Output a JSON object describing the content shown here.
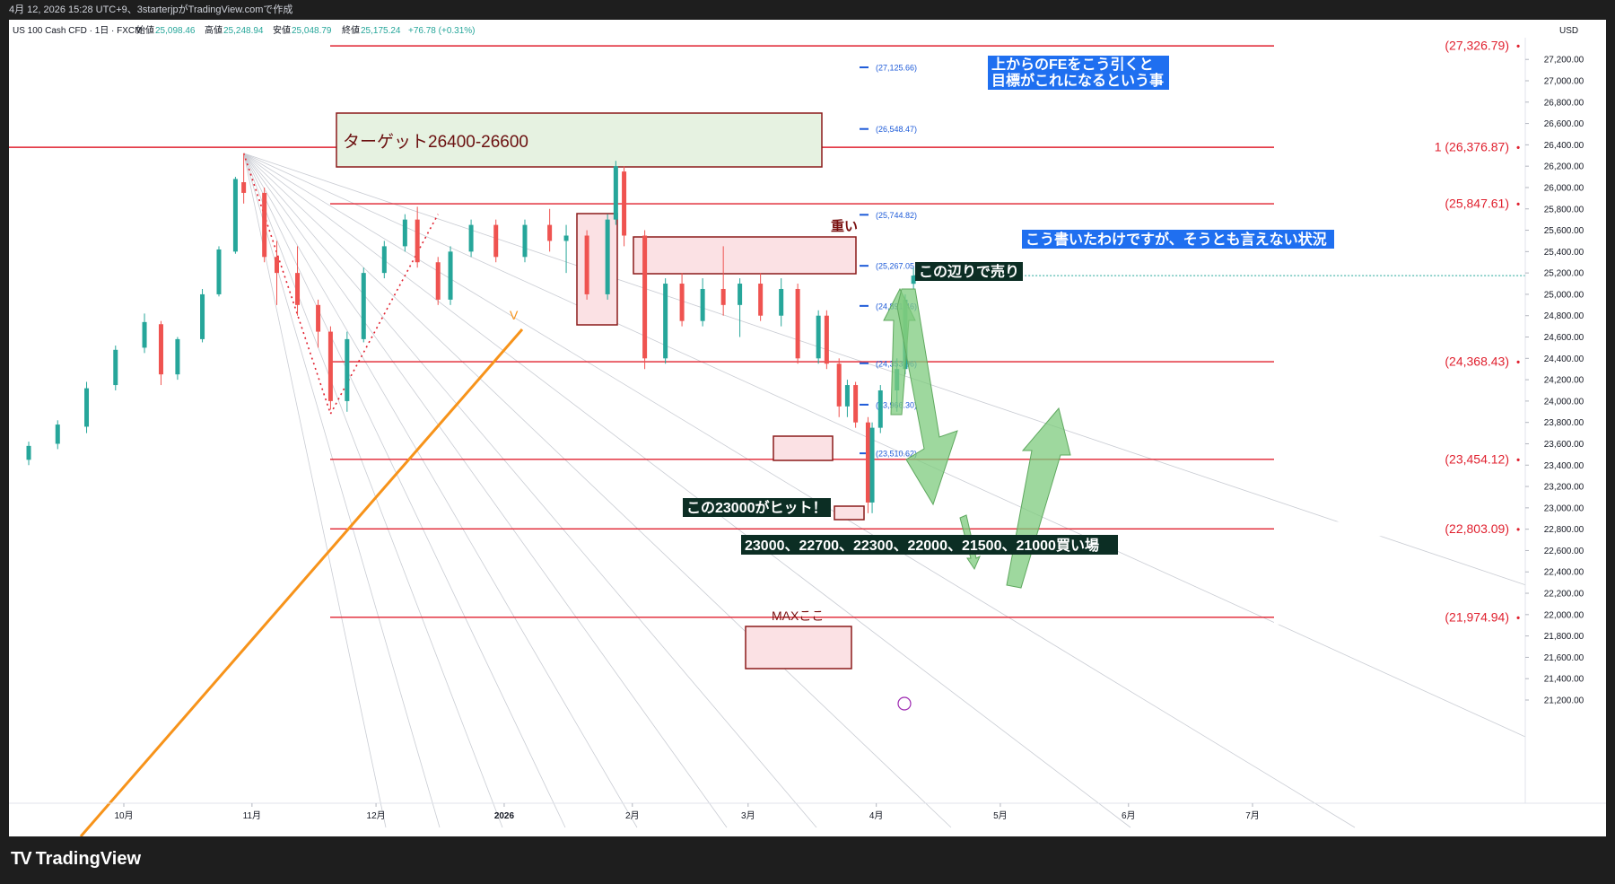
{
  "header": {
    "credit": "4月 12, 2026 15:28 UTC+9、3starterjpがTradingView.comで作成"
  },
  "instrument": {
    "name": "US 100 Cash CFD · 1日 · FXCM",
    "open_label": "始値",
    "open": "25,098.46",
    "high_label": "高値",
    "high": "25,248.94",
    "low_label": "安値",
    "low": "25,048.79",
    "close_label": "終値",
    "close": "25,175.24",
    "change": "+76.78 (+0.31%)"
  },
  "currency": "USD",
  "colors": {
    "up": "#26a69a",
    "down": "#ef5350",
    "level": "#e0212f",
    "fib": "#1e5bd8",
    "orange": "#f7931a",
    "arrow": "#7ecb7e"
  },
  "chart_data": {
    "type": "candlestick",
    "title": "US 100 Cash CFD · 1日 · FXCM",
    "ylim": [
      21000,
      27500
    ],
    "y_ticks": [
      21200,
      21400,
      21600,
      21800,
      22000,
      22200,
      22400,
      22600,
      22800,
      23000,
      23200,
      23400,
      23600,
      23800,
      24000,
      24200,
      24400,
      24600,
      24800,
      25000,
      25200,
      25400,
      25600,
      25800,
      26000,
      26200,
      26400,
      26600,
      26800,
      27000,
      27200
    ],
    "x_ticks": [
      {
        "label": "10月",
        "date": "2025-10-01"
      },
      {
        "label": "11月",
        "date": "2025-11-01"
      },
      {
        "label": "12月",
        "date": "2025-12-01"
      },
      {
        "label": "2026",
        "date": "2026-01-01"
      },
      {
        "label": "2月",
        "date": "2026-02-01"
      },
      {
        "label": "3月",
        "date": "2026-03-01"
      },
      {
        "label": "4月",
        "date": "2026-04-01"
      },
      {
        "label": "5月",
        "date": "2026-05-01"
      },
      {
        "label": "6月",
        "date": "2026-06-01"
      },
      {
        "label": "7月",
        "date": "2026-07-01"
      }
    ],
    "last_price": 25175.24,
    "levels": [
      {
        "value": 27326.79,
        "label": "(27,326.79)"
      },
      {
        "value": 26376.87,
        "label": "1 (26,376.87)"
      },
      {
        "value": 25847.61,
        "label": "(25,847.61)"
      },
      {
        "value": 24368.43,
        "label": "(24,368.43)"
      },
      {
        "value": 23454.12,
        "label": "(23,454.12)"
      },
      {
        "value": 22803.09,
        "label": "(22,803.09)"
      },
      {
        "value": 21974.94,
        "label": "(21,974.94)"
      }
    ],
    "fib_levels": [
      {
        "value": 27125.66,
        "label": "(27,125.66)"
      },
      {
        "value": 26548.47,
        "label": "(26,548.47)"
      },
      {
        "value": 25744.82,
        "label": "(25,744.82)"
      },
      {
        "value": 25267.05,
        "label": "(25,267.05"
      },
      {
        "value": 24891.46,
        "label": "(24,891.46)"
      },
      {
        "value": 24353.96,
        "label": "(24,353.96)"
      },
      {
        "value": 23966.3,
        "label": "(23,966.30)"
      },
      {
        "value": 23510.62,
        "label": "(23,510.62)"
      }
    ],
    "candles": [
      {
        "d": "2025-09-02",
        "o": 23380,
        "h": 23470,
        "l": 23300,
        "c": 23440
      },
      {
        "d": "2025-09-08",
        "o": 23450,
        "h": 23620,
        "l": 23400,
        "c": 23580
      },
      {
        "d": "2025-09-15",
        "o": 23600,
        "h": 23820,
        "l": 23550,
        "c": 23780
      },
      {
        "d": "2025-09-22",
        "o": 23760,
        "h": 24180,
        "l": 23700,
        "c": 24120
      },
      {
        "d": "2025-09-29",
        "o": 24150,
        "h": 24520,
        "l": 24100,
        "c": 24480
      },
      {
        "d": "2025-10-06",
        "o": 24500,
        "h": 24820,
        "l": 24450,
        "c": 24740
      },
      {
        "d": "2025-10-10",
        "o": 24720,
        "h": 24750,
        "l": 24150,
        "c": 24250
      },
      {
        "d": "2025-10-14",
        "o": 24250,
        "h": 24600,
        "l": 24200,
        "c": 24580
      },
      {
        "d": "2025-10-20",
        "o": 24580,
        "h": 25050,
        "l": 24550,
        "c": 25000
      },
      {
        "d": "2025-10-24",
        "o": 25000,
        "h": 25450,
        "l": 24980,
        "c": 25420
      },
      {
        "d": "2025-10-28",
        "o": 25400,
        "h": 26100,
        "l": 25380,
        "c": 26080
      },
      {
        "d": "2025-10-30",
        "o": 26050,
        "h": 26320,
        "l": 25850,
        "c": 25950
      },
      {
        "d": "2025-11-04",
        "o": 25950,
        "h": 26000,
        "l": 25300,
        "c": 25350
      },
      {
        "d": "2025-11-07",
        "o": 25350,
        "h": 25500,
        "l": 24900,
        "c": 25200
      },
      {
        "d": "2025-11-12",
        "o": 25200,
        "h": 25450,
        "l": 24800,
        "c": 24900
      },
      {
        "d": "2025-11-17",
        "o": 24900,
        "h": 24950,
        "l": 24500,
        "c": 24650
      },
      {
        "d": "2025-11-20",
        "o": 24650,
        "h": 24700,
        "l": 23920,
        "c": 24000
      },
      {
        "d": "2025-11-24",
        "o": 24000,
        "h": 24650,
        "l": 23900,
        "c": 24580
      },
      {
        "d": "2025-11-28",
        "o": 24580,
        "h": 25250,
        "l": 24550,
        "c": 25200
      },
      {
        "d": "2025-12-03",
        "o": 25200,
        "h": 25500,
        "l": 25150,
        "c": 25450
      },
      {
        "d": "2025-12-08",
        "o": 25450,
        "h": 25750,
        "l": 25400,
        "c": 25700
      },
      {
        "d": "2025-12-11",
        "o": 25700,
        "h": 25820,
        "l": 25250,
        "c": 25300
      },
      {
        "d": "2025-12-16",
        "o": 25300,
        "h": 25350,
        "l": 24900,
        "c": 24950
      },
      {
        "d": "2025-12-19",
        "o": 24950,
        "h": 25450,
        "l": 24900,
        "c": 25400
      },
      {
        "d": "2025-12-24",
        "o": 25400,
        "h": 25700,
        "l": 25350,
        "c": 25650
      },
      {
        "d": "2025-12-30",
        "o": 25650,
        "h": 25700,
        "l": 25300,
        "c": 25350
      },
      {
        "d": "2026-01-06",
        "o": 25350,
        "h": 25700,
        "l": 25300,
        "c": 25650
      },
      {
        "d": "2026-01-12",
        "o": 25650,
        "h": 25800,
        "l": 25400,
        "c": 25500
      },
      {
        "d": "2026-01-16",
        "o": 25500,
        "h": 25650,
        "l": 25200,
        "c": 25550
      },
      {
        "d": "2026-01-21",
        "o": 25550,
        "h": 25600,
        "l": 24950,
        "c": 25000
      },
      {
        "d": "2026-01-26",
        "o": 25000,
        "h": 25750,
        "l": 24950,
        "c": 25700
      },
      {
        "d": "2026-01-28",
        "o": 25700,
        "h": 26250,
        "l": 25650,
        "c": 26200
      },
      {
        "d": "2026-01-30",
        "o": 26150,
        "h": 26200,
        "l": 25450,
        "c": 25550
      },
      {
        "d": "2026-02-04",
        "o": 25550,
        "h": 25600,
        "l": 24300,
        "c": 24400
      },
      {
        "d": "2026-02-09",
        "o": 24400,
        "h": 25150,
        "l": 24350,
        "c": 25100
      },
      {
        "d": "2026-02-13",
        "o": 25100,
        "h": 25200,
        "l": 24700,
        "c": 24750
      },
      {
        "d": "2026-02-18",
        "o": 24750,
        "h": 25150,
        "l": 24700,
        "c": 25050
      },
      {
        "d": "2026-02-23",
        "o": 25050,
        "h": 25450,
        "l": 24800,
        "c": 24900
      },
      {
        "d": "2026-02-27",
        "o": 24900,
        "h": 25150,
        "l": 24600,
        "c": 25100
      },
      {
        "d": "2026-03-04",
        "o": 25100,
        "h": 25200,
        "l": 24750,
        "c": 24800
      },
      {
        "d": "2026-03-09",
        "o": 24800,
        "h": 25150,
        "l": 24700,
        "c": 25050
      },
      {
        "d": "2026-03-13",
        "o": 25050,
        "h": 25100,
        "l": 24350,
        "c": 24400
      },
      {
        "d": "2026-03-18",
        "o": 24400,
        "h": 24850,
        "l": 24350,
        "c": 24800
      },
      {
        "d": "2026-03-20",
        "o": 24800,
        "h": 24850,
        "l": 24300,
        "c": 24350
      },
      {
        "d": "2026-03-23",
        "o": 24350,
        "h": 24400,
        "l": 23850,
        "c": 23950
      },
      {
        "d": "2026-03-25",
        "o": 23950,
        "h": 24200,
        "l": 23850,
        "c": 24150
      },
      {
        "d": "2026-03-27",
        "o": 24150,
        "h": 24180,
        "l": 23750,
        "c": 23800
      },
      {
        "d": "2026-03-30",
        "o": 23800,
        "h": 23850,
        "l": 22950,
        "c": 23050
      },
      {
        "d": "2026-03-31",
        "o": 23050,
        "h": 23800,
        "l": 22950,
        "c": 23750
      },
      {
        "d": "2026-04-02",
        "o": 23750,
        "h": 24150,
        "l": 23700,
        "c": 24100
      },
      {
        "d": "2026-04-06",
        "o": 24100,
        "h": 24400,
        "l": 23900,
        "c": 24300
      },
      {
        "d": "2026-04-08",
        "o": 24300,
        "h": 25000,
        "l": 24250,
        "c": 24950
      },
      {
        "d": "2026-04-10",
        "o": 25098.46,
        "h": 25248.94,
        "l": 25048.79,
        "c": 25175.24
      }
    ]
  },
  "annotations": {
    "target": "ターゲット26400-26600",
    "fe_note_line1": "上からのFEをこう引くと",
    "fe_note_line2": "目標がこれになるという事",
    "heavy": "重い",
    "wrote": "こう書いたわけですが、そうとも言えない状況",
    "sell": "この辺りで売り",
    "hit": "この23000がヒット！",
    "buy": "23000、22700、22300、22000、21500、21000買い場",
    "max": "MAXここ",
    "v": "V",
    "price_tag": "25,175.24"
  },
  "footer": {
    "brand": "TradingView"
  }
}
